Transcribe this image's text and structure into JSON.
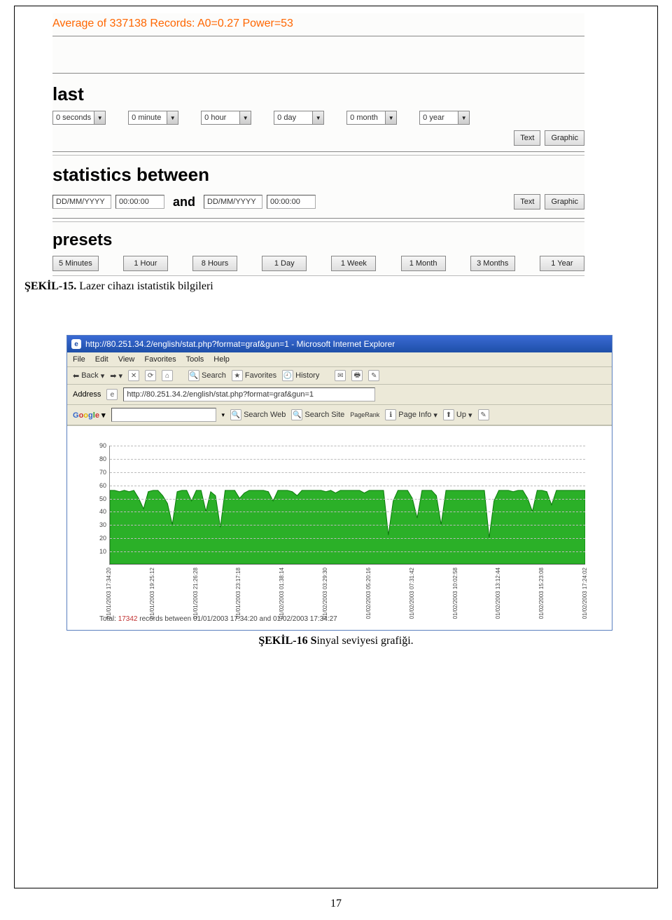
{
  "form": {
    "avg_line": "Average of 337138 Records: A0=0.27 Power=53",
    "section_last": "last",
    "last_dropdowns": [
      {
        "value": "0 seconds"
      },
      {
        "value": "0 minute"
      },
      {
        "value": "0 hour"
      },
      {
        "value": "0 day"
      },
      {
        "value": "0 month"
      },
      {
        "value": "0 year"
      }
    ],
    "btn_text": "Text",
    "btn_graphic": "Graphic",
    "section_stats": "statistics between",
    "stats_from_date": "DD/MM/YYYY",
    "stats_from_time": "00:00:00",
    "and": "and",
    "stats_to_date": "DD/MM/YYYY",
    "stats_to_time": "00:00:00",
    "section_presets": "presets",
    "presets": [
      "5 Minutes",
      "1 Hour",
      "8 Hours",
      "1 Day",
      "1 Week",
      "1 Month",
      "3 Months",
      "1 Year"
    ]
  },
  "caption15_bold": "ŞEKİL-15.",
  "caption15_rest": " Lazer cihazı istatistik bilgileri",
  "browser": {
    "title": "http://80.251.34.2/english/stat.php?format=graf&gun=1 - Microsoft Internet Explorer",
    "menu": [
      "File",
      "Edit",
      "View",
      "Favorites",
      "Tools",
      "Help"
    ],
    "back": "Back",
    "search": "Search",
    "favorites": "Favorites",
    "history": "History",
    "address_label": "Address",
    "address_value": "http://80.251.34.2/english/stat.php?format=graf&gun=1",
    "search_web": "Search Web",
    "search_site": "Search Site",
    "pagerank": "PageRank",
    "page_info": "Page Info",
    "up": "Up"
  },
  "chart": {
    "type": "area",
    "ylim": [
      0,
      90
    ],
    "yticks": [
      10,
      20,
      30,
      40,
      50,
      60,
      70,
      80,
      90
    ],
    "grid_color": "#bbbbbb",
    "fill_color": "#2bb028",
    "stroke_color": "#0a7a0a",
    "background_color": "#ffffff",
    "y_values": [
      56,
      56,
      55,
      56,
      55,
      56,
      50,
      42,
      55,
      56,
      56,
      52,
      46,
      30,
      55,
      56,
      56,
      48,
      56,
      56,
      40,
      55,
      52,
      28,
      56,
      56,
      56,
      50,
      54,
      56,
      56,
      56,
      56,
      55,
      48,
      56,
      56,
      56,
      55,
      52,
      56,
      56,
      56,
      56,
      56,
      55,
      56,
      54,
      56,
      56,
      56,
      56,
      56,
      54,
      56,
      56,
      56,
      56,
      22,
      48,
      56,
      56,
      56,
      50,
      35,
      56,
      56,
      56,
      52,
      30,
      56,
      56,
      56,
      56,
      56,
      56,
      56,
      56,
      56,
      20,
      48,
      56,
      56,
      56,
      55,
      56,
      56,
      50,
      40,
      56,
      56,
      55,
      45,
      56,
      56,
      56,
      56,
      56,
      56,
      56
    ],
    "xlabels_major": [
      "01/01/2003 17:34:20",
      "01/01/2003 19:25:12",
      "01/01/2003 21:26:28",
      "01/01/2003 23:17:18",
      "01/02/2003 01:38:14",
      "01/02/2003 03:29:30",
      "01/02/2003 05:20:16",
      "01/02/2003 07:31:42",
      "01/02/2003 10:02:58",
      "01/02/2003 13:12:44",
      "01/02/2003 15:23:08",
      "01/02/2003 17:24:02"
    ],
    "footer_total_label": "Total:",
    "footer_total_value": "17342",
    "footer_rest": "records between 01/01/2003 17:34:20 and 01/02/2003 17:34:27"
  },
  "caption16_bold": "ŞEKİL-16 S",
  "caption16_rest": "inyal seviyesi grafiği.",
  "page_number": "17"
}
